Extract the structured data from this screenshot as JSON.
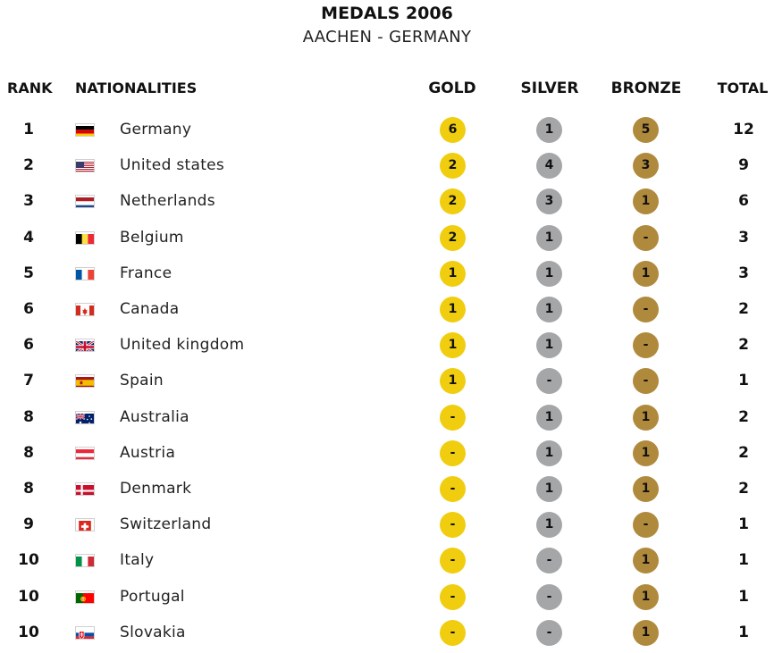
{
  "header": {
    "title": "MEDALS 2006",
    "subtitle": "AACHEN - GERMANY"
  },
  "columns": {
    "rank": "RANK",
    "nationalities": "NATIONALITIES",
    "gold": "GOLD",
    "silver": "SILVER",
    "bronze": "BRONZE",
    "total": "TOTAL"
  },
  "colors": {
    "gold": "#f0cd0e",
    "silver": "#a5a6a8",
    "bronze": "#b08a3c"
  },
  "rows": [
    {
      "rank": "1",
      "country": "Germany",
      "flag": "germany-flag-icon",
      "gold": "6",
      "silver": "1",
      "bronze": "5",
      "total": "12"
    },
    {
      "rank": "2",
      "country": "United states",
      "flag": "usa-flag-icon",
      "gold": "2",
      "silver": "4",
      "bronze": "3",
      "total": "9"
    },
    {
      "rank": "3",
      "country": "Netherlands",
      "flag": "netherlands-flag-icon",
      "gold": "2",
      "silver": "3",
      "bronze": "1",
      "total": "6"
    },
    {
      "rank": "4",
      "country": "Belgium",
      "flag": "belgium-flag-icon",
      "gold": "2",
      "silver": "1",
      "bronze": "-",
      "total": "3"
    },
    {
      "rank": "5",
      "country": "France",
      "flag": "france-flag-icon",
      "gold": "1",
      "silver": "1",
      "bronze": "1",
      "total": "3"
    },
    {
      "rank": "6",
      "country": "Canada",
      "flag": "canada-flag-icon",
      "gold": "1",
      "silver": "1",
      "bronze": "-",
      "total": "2"
    },
    {
      "rank": "6",
      "country": "United kingdom",
      "flag": "united-kingdom-flag-icon",
      "gold": "1",
      "silver": "1",
      "bronze": "-",
      "total": "2"
    },
    {
      "rank": "7",
      "country": "Spain",
      "flag": "spain-flag-icon",
      "gold": "1",
      "silver": "-",
      "bronze": "-",
      "total": "1"
    },
    {
      "rank": "8",
      "country": "Australia",
      "flag": "australia-flag-icon",
      "gold": "-",
      "silver": "1",
      "bronze": "1",
      "total": "2"
    },
    {
      "rank": "8",
      "country": "Austria",
      "flag": "austria-flag-icon",
      "gold": "-",
      "silver": "1",
      "bronze": "1",
      "total": "2"
    },
    {
      "rank": "8",
      "country": "Denmark",
      "flag": "denmark-flag-icon",
      "gold": "-",
      "silver": "1",
      "bronze": "1",
      "total": "2"
    },
    {
      "rank": "9",
      "country": "Switzerland",
      "flag": "switzerland-flag-icon",
      "gold": "-",
      "silver": "1",
      "bronze": "-",
      "total": "1"
    },
    {
      "rank": "10",
      "country": "Italy",
      "flag": "italy-flag-icon",
      "gold": "-",
      "silver": "-",
      "bronze": "1",
      "total": "1"
    },
    {
      "rank": "10",
      "country": "Portugal",
      "flag": "portugal-flag-icon",
      "gold": "-",
      "silver": "-",
      "bronze": "1",
      "total": "1"
    },
    {
      "rank": "10",
      "country": "Slovakia",
      "flag": "slovakia-flag-icon",
      "gold": "-",
      "silver": "-",
      "bronze": "1",
      "total": "1"
    }
  ]
}
